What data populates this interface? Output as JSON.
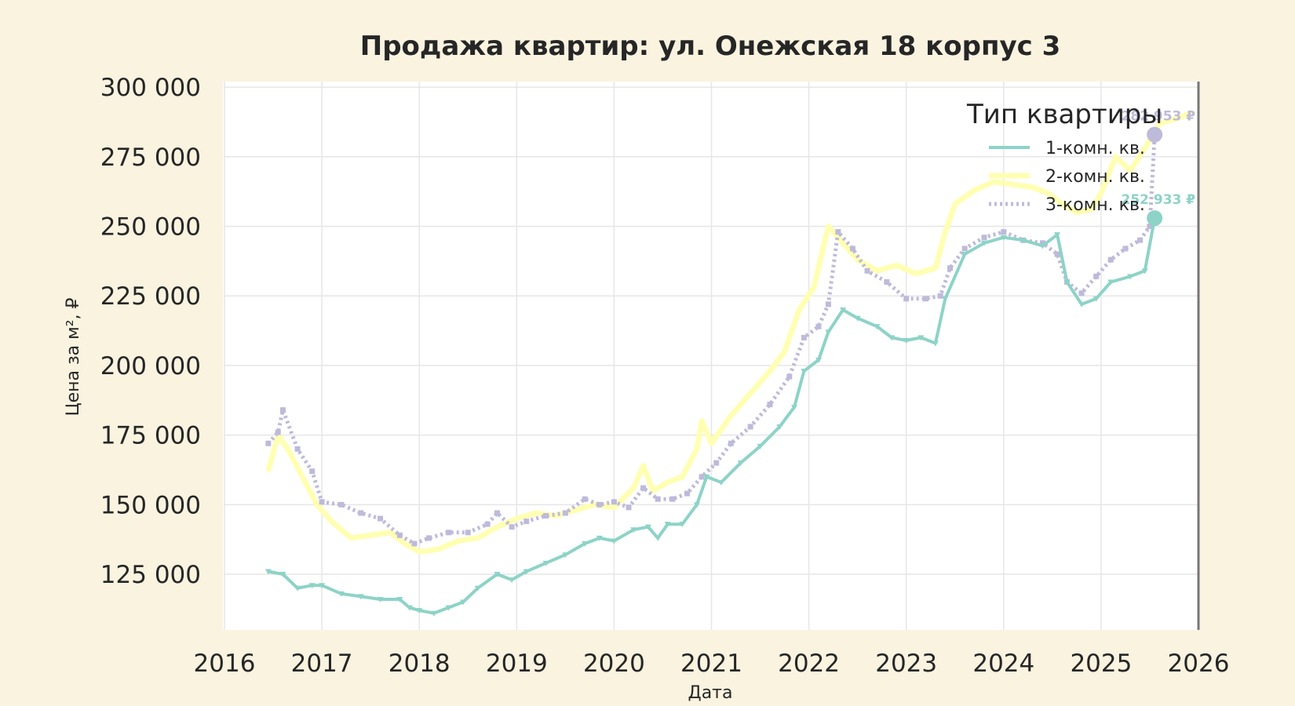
{
  "chart_data": {
    "type": "line",
    "title": "Продажа квартир: ул. Онежская 18 корпус 3",
    "xlabel": "Дата",
    "ylabel": "Цена за м², ₽",
    "xlim": [
      2016,
      2026
    ],
    "ylim": [
      105000,
      302000
    ],
    "x_ticks": [
      "2016",
      "2017",
      "2018",
      "2019",
      "2020",
      "2021",
      "2022",
      "2023",
      "2024",
      "2025",
      "2026"
    ],
    "y_ticks": [
      "125 000",
      "150 000",
      "175 000",
      "200 000",
      "225 000",
      "250 000",
      "275 000",
      "300 000"
    ],
    "y_tick_values": [
      125000,
      150000,
      175000,
      200000,
      225000,
      250000,
      275000,
      300000
    ],
    "grid": true,
    "legend": {
      "title": "Тип квартиры",
      "position": "top-right"
    },
    "series": [
      {
        "name": "1-комн. кв.",
        "color": "#8dd3c7",
        "end_label": "252 933 ₽",
        "end_value": 252933,
        "x": [
          2016.45,
          2016.6,
          2016.75,
          2016.9,
          2017.0,
          2017.2,
          2017.4,
          2017.6,
          2017.8,
          2017.9,
          2018.0,
          2018.15,
          2018.3,
          2018.45,
          2018.6,
          2018.8,
          2018.95,
          2019.1,
          2019.3,
          2019.5,
          2019.7,
          2019.85,
          2020.0,
          2020.2,
          2020.35,
          2020.45,
          2020.55,
          2020.7,
          2020.85,
          2020.95,
          2021.1,
          2021.3,
          2021.5,
          2021.7,
          2021.85,
          2021.95,
          2022.1,
          2022.2,
          2022.35,
          2022.5,
          2022.7,
          2022.85,
          2023.0,
          2023.15,
          2023.3,
          2023.4,
          2023.6,
          2023.8,
          2024.0,
          2024.2,
          2024.4,
          2024.55,
          2024.65,
          2024.8,
          2024.95,
          2025.1,
          2025.3,
          2025.45,
          2025.55
        ],
        "y": [
          126000,
          125000,
          120000,
          121000,
          121000,
          118000,
          117000,
          116000,
          116000,
          113000,
          112000,
          111000,
          113000,
          115000,
          120000,
          125000,
          123000,
          126000,
          129000,
          132000,
          136000,
          138000,
          137000,
          141000,
          142000,
          138000,
          143000,
          143000,
          150000,
          160000,
          158000,
          165000,
          171000,
          178000,
          185000,
          198000,
          202000,
          212000,
          220000,
          217000,
          214000,
          210000,
          209000,
          210000,
          208000,
          224000,
          240000,
          244000,
          246000,
          245000,
          243000,
          247000,
          230000,
          222000,
          224000,
          230000,
          232000,
          234000,
          252933
        ]
      },
      {
        "name": "2-комн. кв.",
        "color": "#ffffb3",
        "end_label": "",
        "x": [
          2016.45,
          2016.55,
          2016.65,
          2016.8,
          2016.95,
          2017.1,
          2017.3,
          2017.5,
          2017.7,
          2017.85,
          2018.0,
          2018.2,
          2018.4,
          2018.6,
          2018.8,
          2019.0,
          2019.2,
          2019.4,
          2019.6,
          2019.8,
          2020.0,
          2020.2,
          2020.3,
          2020.4,
          2020.55,
          2020.7,
          2020.85,
          2020.9,
          2021.0,
          2021.2,
          2021.4,
          2021.6,
          2021.75,
          2021.9,
          2022.05,
          2022.2,
          2022.35,
          2022.5,
          2022.7,
          2022.9,
          2023.1,
          2023.3,
          2023.4,
          2023.5,
          2023.7,
          2023.9,
          2024.1,
          2024.3,
          2024.45,
          2024.6,
          2024.75,
          2024.9,
          2025.0,
          2025.15,
          2025.3,
          2025.45,
          2025.6,
          2025.8,
          2025.95
        ],
        "y": [
          162000,
          175000,
          170000,
          160000,
          150000,
          144000,
          138000,
          139000,
          140000,
          136000,
          133000,
          134000,
          137000,
          138000,
          142000,
          145000,
          147000,
          146000,
          148000,
          150000,
          149000,
          156000,
          164000,
          155000,
          158000,
          160000,
          170000,
          180000,
          172000,
          182000,
          190000,
          198000,
          205000,
          220000,
          228000,
          250000,
          244000,
          238000,
          234000,
          236000,
          233000,
          235000,
          248000,
          258000,
          263000,
          266000,
          265000,
          264000,
          262000,
          258000,
          255000,
          256000,
          262000,
          275000,
          270000,
          278000,
          287000,
          289000,
          291000
        ]
      },
      {
        "name": "3-комн. кв.",
        "color": "#bebada",
        "end_label": "282 953 ₽",
        "end_value": 282953,
        "x": [
          2016.45,
          2016.55,
          2016.6,
          2016.75,
          2016.9,
          2017.0,
          2017.2,
          2017.4,
          2017.6,
          2017.8,
          2017.95,
          2018.1,
          2018.3,
          2018.5,
          2018.7,
          2018.8,
          2018.95,
          2019.1,
          2019.3,
          2019.5,
          2019.7,
          2019.85,
          2020.0,
          2020.15,
          2020.3,
          2020.45,
          2020.6,
          2020.75,
          2020.9,
          2021.05,
          2021.2,
          2021.4,
          2021.6,
          2021.8,
          2021.95,
          2022.1,
          2022.2,
          2022.3,
          2022.45,
          2022.6,
          2022.8,
          2023.0,
          2023.2,
          2023.35,
          2023.45,
          2023.6,
          2023.8,
          2024.0,
          2024.2,
          2024.4,
          2024.55,
          2024.65,
          2024.8,
          2024.95,
          2025.1,
          2025.25,
          2025.4,
          2025.5,
          2025.55
        ],
        "y": [
          172000,
          176000,
          184000,
          170000,
          162000,
          151000,
          150000,
          147000,
          145000,
          139000,
          136000,
          138000,
          140000,
          140000,
          143000,
          147000,
          142000,
          144000,
          146000,
          147000,
          152000,
          150000,
          151000,
          149000,
          156000,
          152000,
          152000,
          154000,
          160000,
          165000,
          172000,
          178000,
          186000,
          196000,
          210000,
          214000,
          222000,
          248000,
          242000,
          234000,
          230000,
          224000,
          224000,
          225000,
          235000,
          242000,
          246000,
          248000,
          245000,
          244000,
          240000,
          230000,
          226000,
          232000,
          238000,
          242000,
          245000,
          250000,
          282953
        ]
      }
    ]
  }
}
